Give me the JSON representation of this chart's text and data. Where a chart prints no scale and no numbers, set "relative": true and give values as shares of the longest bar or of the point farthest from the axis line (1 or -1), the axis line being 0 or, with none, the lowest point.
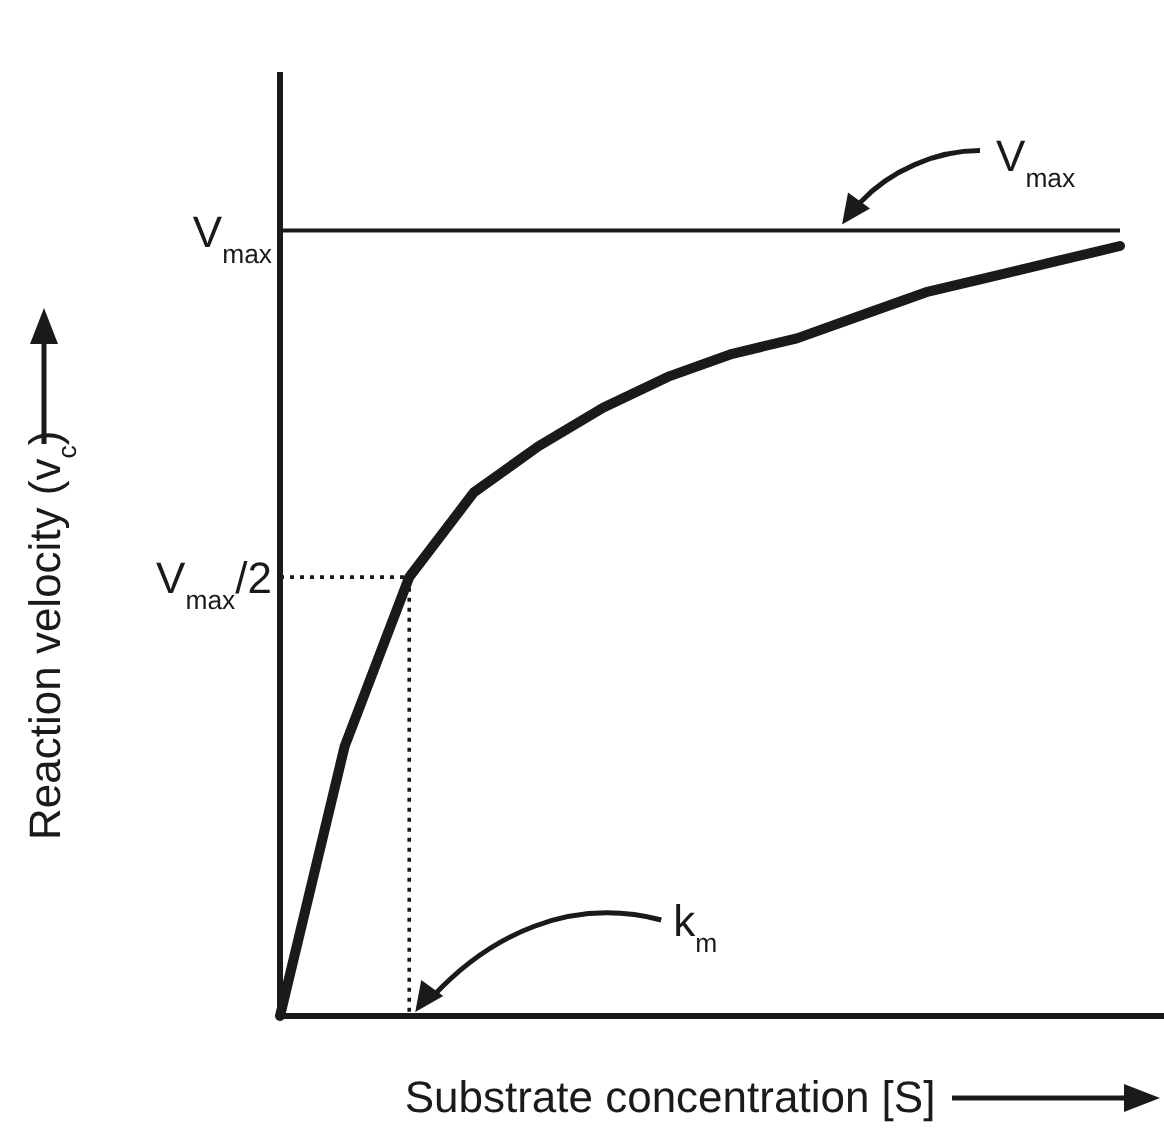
{
  "chart_data": {
    "type": "line",
    "relative": true,
    "xlabel": "Substrate concentration [S]",
    "ylabel": "Reaction velocity (v$_{c}$)",
    "categories": [
      null,
      null,
      null,
      null,
      null,
      null,
      null,
      null,
      null,
      null,
      null,
      null,
      null,
      null
    ],
    "series": [
      {
        "color": "#1a1a1a",
        "values": [
          0,
          0.35,
          0.57,
          0.68,
          0.74,
          0.79,
          0.83,
          0.86,
          0.88,
          0.91,
          0.94,
          0.96,
          0.98,
          1
        ]
      }
    ],
    "ref_lines": [
      {
        "axis": "y",
        "value": 1.02,
        "label": "V$_{max}$",
        "color": "#1a1a1a",
        "line_style": "solid"
      },
      {
        "axis": "y",
        "value": 0.57,
        "label": "V$_{max}$/2",
        "color": "#1a1a1a",
        "line_style": "dotted"
      }
    ],
    "annotations": [
      "V$_{max}$",
      "k$_{m}$"
    ]
  }
}
